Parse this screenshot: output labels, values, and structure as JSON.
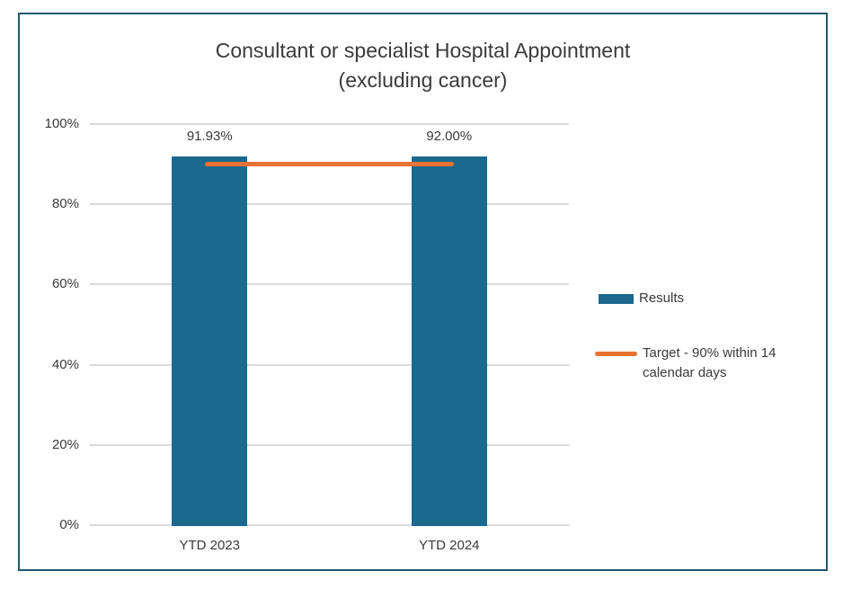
{
  "colors": {
    "frame_border": "#20586B",
    "bar": "#1B698E",
    "target_line": "#E97132",
    "gridline": "#D9D9D9",
    "text": "#3A3A3A",
    "background": "#FFFFFF"
  },
  "title": {
    "line1": "Consultant or specialist Hospital Appointment",
    "line2": "(excluding cancer)"
  },
  "legend": {
    "results_label": "Results",
    "target_label_line1": "Target - 90% within 14",
    "target_label_line2": "calendar days"
  },
  "chart_data": {
    "type": "bar",
    "title": "Consultant or specialist Hospital Appointment (excluding cancer)",
    "categories": [
      "YTD 2023",
      "YTD 2024"
    ],
    "series": [
      {
        "name": "Results",
        "type": "bar",
        "values": [
          91.93,
          92.0
        ],
        "color": "#1B698E"
      },
      {
        "name": "Target - 90% within 14 calendar days",
        "type": "line",
        "values": [
          90,
          90
        ],
        "color": "#E97132"
      }
    ],
    "data_labels": [
      "91.93%",
      "92.00%"
    ],
    "y_ticks": [
      "0%",
      "20%",
      "40%",
      "60%",
      "80%",
      "100%"
    ],
    "ylim": [
      0,
      100
    ],
    "grid": true,
    "legend_position": "right",
    "xlabel": "",
    "ylabel": ""
  }
}
